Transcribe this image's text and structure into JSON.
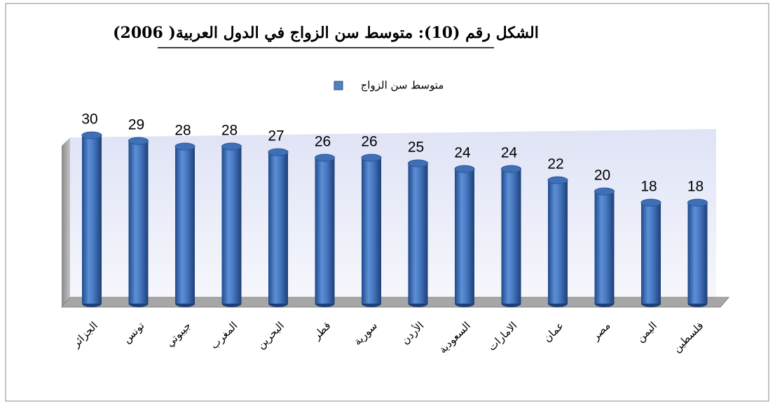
{
  "chart_data": {
    "type": "bar",
    "title": "الشكل رقم (10): متوسط سن الزواج في الدول العربية( 2006)",
    "categories": [
      "الجزائر",
      "تونس",
      "جيبوتي",
      "المغرب",
      "البحرين",
      "قطر",
      "سورية",
      "الأردن",
      "السعودية",
      "الامارات",
      "عمان",
      "مصر",
      "اليمن",
      "فلسطين"
    ],
    "series": [
      {
        "name": "متوسط سن الزواج",
        "color": "#4f81bd",
        "values": [
          30,
          29,
          28,
          28,
          27,
          26,
          26,
          25,
          24,
          24,
          22,
          20,
          18,
          18
        ]
      }
    ]
  }
}
